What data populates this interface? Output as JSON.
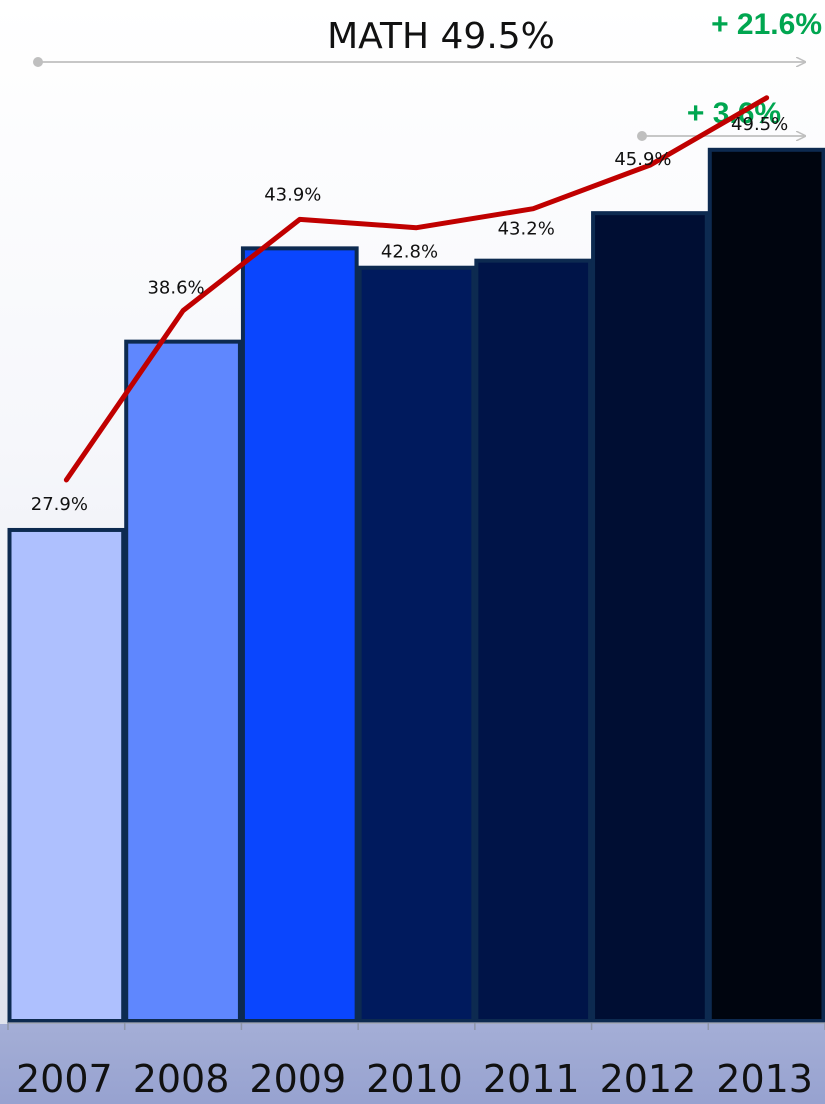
{
  "chart_data": {
    "type": "bar",
    "title": "MATH 49.5%",
    "categories": [
      "2007",
      "2008",
      "2009",
      "2010",
      "2011",
      "2012",
      "2013"
    ],
    "series": [
      {
        "values": [
          27.9,
          38.6,
          43.9,
          42.8,
          43.2,
          45.9,
          49.5
        ],
        "labels": [
          "27.9%",
          "38.6%",
          "43.9%",
          "42.8%",
          "43.2%",
          "45.9%",
          "49.5%"
        ],
        "line_color": "#c00000"
      }
    ],
    "bar_colors": [
      "#aec0fe",
      "#5f87fe",
      "#0a46fe",
      "#001a5d",
      "#001448",
      "#000e33",
      "#00050f"
    ],
    "bar_border": "#0d2a50",
    "annotations": [
      {
        "text": "+ 21.6%",
        "color": "#00a650",
        "span": "2007-2013"
      },
      {
        "text": "+ 3.6%",
        "color": "#00a650",
        "span": "2012-2013"
      }
    ],
    "arrow_color": "#bfbfbf",
    "ylim": [
      0,
      55
    ],
    "grid": false,
    "legend": "none"
  }
}
